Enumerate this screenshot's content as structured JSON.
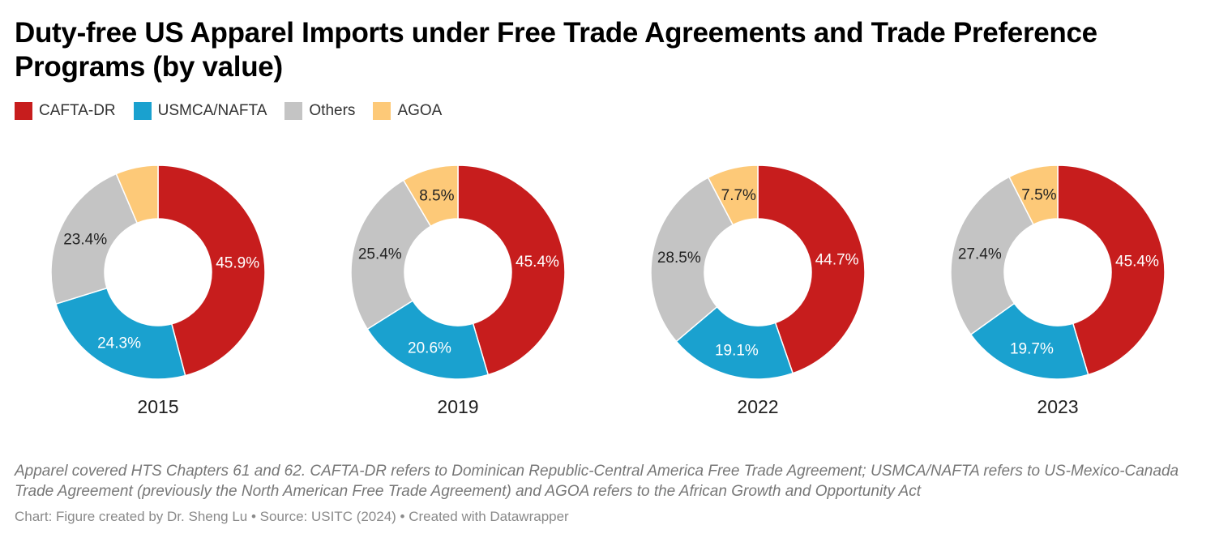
{
  "chart_data": {
    "type": "pie",
    "title": "Duty-free US Apparel Imports under Free Trade Agreements and Trade Preference Programs (by value)",
    "legend": {
      "placement": "top-left",
      "entries": [
        "CAFTA-DR",
        "USMCA/NAFTA",
        "Others",
        "AGOA"
      ]
    },
    "colors": {
      "CAFTA-DR": "#c71d1d",
      "USMCA/NAFTA": "#1aa1cf",
      "Others": "#c4c4c4",
      "AGOA": "#fdc978"
    },
    "donut": true,
    "charts": [
      {
        "year": "2015",
        "values": {
          "CAFTA-DR": 45.9,
          "USMCA/NAFTA": 24.3,
          "Others": 23.4,
          "AGOA": 6.4
        },
        "labels": {
          "CAFTA-DR": "45.9%",
          "USMCA/NAFTA": "24.3%",
          "Others": "23.4%",
          "AGOA": ""
        }
      },
      {
        "year": "2019",
        "values": {
          "CAFTA-DR": 45.4,
          "USMCA/NAFTA": 20.6,
          "Others": 25.4,
          "AGOA": 8.5
        },
        "labels": {
          "CAFTA-DR": "45.4%",
          "USMCA/NAFTA": "20.6%",
          "Others": "25.4%",
          "AGOA": "8.5%"
        }
      },
      {
        "year": "2022",
        "values": {
          "CAFTA-DR": 44.7,
          "USMCA/NAFTA": 19.1,
          "Others": 28.5,
          "AGOA": 7.7
        },
        "labels": {
          "CAFTA-DR": "44.7%",
          "USMCA/NAFTA": "19.1%",
          "Others": "28.5%",
          "AGOA": "7.7%"
        }
      },
      {
        "year": "2023",
        "values": {
          "CAFTA-DR": 45.4,
          "USMCA/NAFTA": 19.7,
          "Others": 27.4,
          "AGOA": 7.5
        },
        "labels": {
          "CAFTA-DR": "45.4%",
          "USMCA/NAFTA": "19.7%",
          "Others": "27.4%",
          "AGOA": "7.5%"
        }
      }
    ],
    "note": "Apparel covered HTS Chapters 61 and 62. CAFTA-DR refers to Dominican Republic-Central America Free Trade Agreement; USMCA/NAFTA refers to US-Mexico-Canada Trade Agreement (previously the North American Free Trade Agreement) and AGOA refers to the African Growth and Opportunity Act",
    "credit": "Chart: Figure created by Dr. Sheng Lu • Source: USITC (2024) • Created with Datawrapper"
  }
}
